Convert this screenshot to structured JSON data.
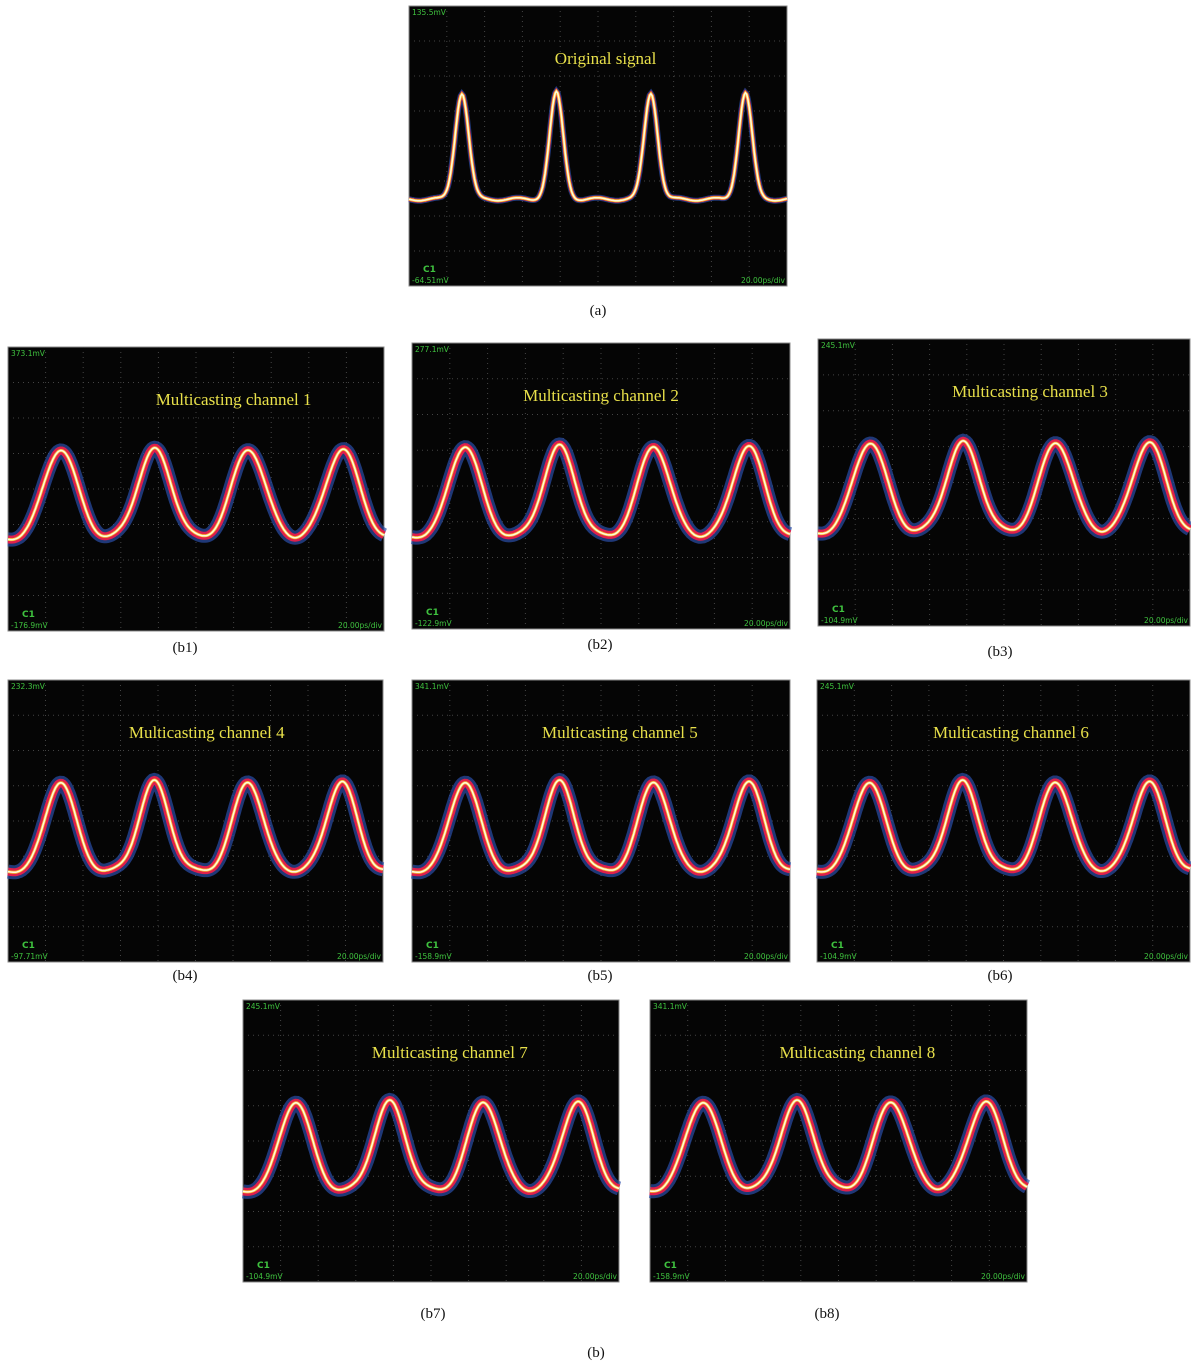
{
  "panels": [
    {
      "caption": "(a)",
      "title": "Original signal",
      "top_label": "135.5mV",
      "bottom_label": "-64.51mV",
      "channel": "C1",
      "timebase": "20.00ps/div"
    },
    {
      "caption": "(b1)",
      "title": "Multicasting channel 1",
      "top_label": "373.1mV",
      "bottom_label": "-176.9mV",
      "channel": "C1",
      "timebase": "20.00ps/div"
    },
    {
      "caption": "(b2)",
      "title": "Multicasting channel 2",
      "top_label": "277.1mV",
      "bottom_label": "-122.9mV",
      "channel": "C1",
      "timebase": "20.00ps/div"
    },
    {
      "caption": "(b3)",
      "title": "Multicasting channel 3",
      "top_label": "245.1mV",
      "bottom_label": "-104.9mV",
      "channel": "C1",
      "timebase": "20.00ps/div"
    },
    {
      "caption": "(b4)",
      "title": "Multicasting channel 4",
      "top_label": "232.3mV",
      "bottom_label": "-97.71mV",
      "channel": "C1",
      "timebase": "20.00ps/div"
    },
    {
      "caption": "(b5)",
      "title": "Multicasting channel 5",
      "top_label": "341.1mV",
      "bottom_label": "-158.9mV",
      "channel": "C1",
      "timebase": "20.00ps/div"
    },
    {
      "caption": "(b6)",
      "title": "Multicasting channel 6",
      "top_label": "245.1mV",
      "bottom_label": "-104.9mV",
      "channel": "C1",
      "timebase": "20.00ps/div"
    },
    {
      "caption": "(b7)",
      "title": "Multicasting channel 7",
      "top_label": "245.1mV",
      "bottom_label": "-104.9mV",
      "channel": "C1",
      "timebase": "20.00ps/div"
    },
    {
      "caption": "(b8)",
      "title": "Multicasting channel 8",
      "top_label": "341.1mV",
      "bottom_label": "-158.9mV",
      "channel": "C1",
      "timebase": "20.00ps/div"
    }
  ],
  "figure_caption": "(b)"
}
